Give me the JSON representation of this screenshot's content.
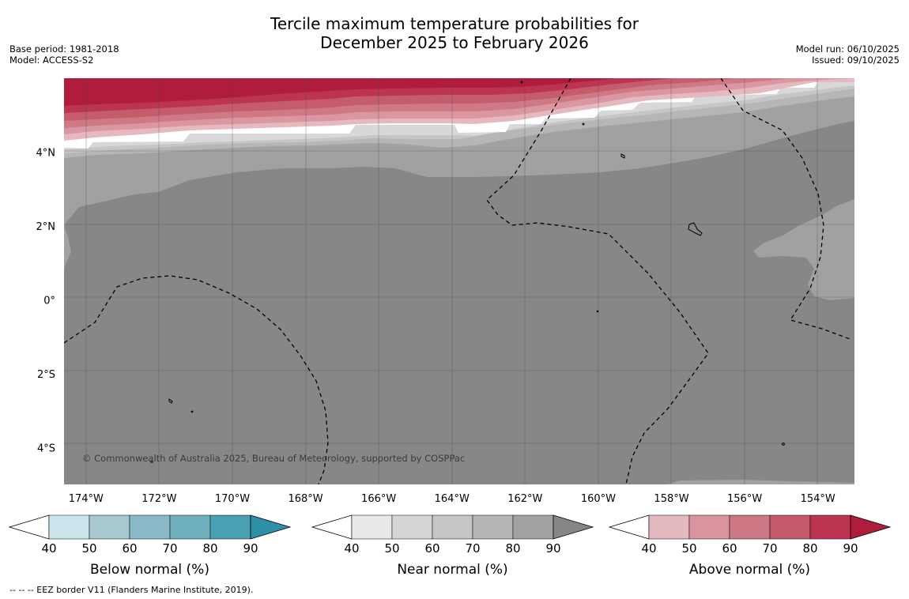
{
  "title": {
    "line1": "Tercile maximum temperature probabilities for",
    "line2": "December 2025 to February 2026"
  },
  "meta_left": {
    "base_period": "Base period: 1981-2018",
    "model": "Model: ACCESS-S2"
  },
  "meta_right": {
    "model_run": "Model run: 06/10/2025",
    "issued": "Issued: 09/10/2025"
  },
  "map": {
    "lon_range": [
      -174.6,
      -153.0
    ],
    "lat_range": [
      -5.0,
      6.0
    ],
    "lon_ticks": [
      {
        "value": -174,
        "label": "174°W"
      },
      {
        "value": -172,
        "label": "172°W"
      },
      {
        "value": -170,
        "label": "170°W"
      },
      {
        "value": -168,
        "label": "168°W"
      },
      {
        "value": -166,
        "label": "166°W"
      },
      {
        "value": -164,
        "label": "164°W"
      },
      {
        "value": -162,
        "label": "162°W"
      },
      {
        "value": -160,
        "label": "160°W"
      },
      {
        "value": -158,
        "label": "158°W"
      },
      {
        "value": -156,
        "label": "156°W"
      },
      {
        "value": -154,
        "label": "154°W"
      }
    ],
    "lat_ticks": [
      {
        "value": 4,
        "label": "4°N"
      },
      {
        "value": 2,
        "label": "2°N"
      },
      {
        "value": 0,
        "label": "0°"
      },
      {
        "value": -2,
        "label": "2°S"
      },
      {
        "value": -4,
        "label": "4°S"
      }
    ],
    "copyright": "© Commonwealth of Australia 2025, Bureau of Meteorology, supported by COSPPac"
  },
  "colorbars": [
    {
      "label": "Below normal (%)",
      "ticks": [
        "40",
        "50",
        "60",
        "70",
        "80",
        "90"
      ],
      "colors": [
        "#cbe3ea",
        "#a8c8cf",
        "#8bb8c6",
        "#6fafbd",
        "#4aa0b2",
        "#2f8fa6"
      ]
    },
    {
      "label": "Near normal (%)",
      "ticks": [
        "40",
        "50",
        "60",
        "70",
        "80",
        "90"
      ],
      "colors": [
        "#e8e8e8",
        "#d6d6d6",
        "#c6c6c6",
        "#b6b6b6",
        "#a2a2a2",
        "#868686"
      ]
    },
    {
      "label": "Above normal (%)",
      "ticks": [
        "40",
        "50",
        "60",
        "70",
        "80",
        "90"
      ],
      "colors": [
        "#e4b8bf",
        "#d9949f",
        "#ce7886",
        "#c45b6b",
        "#bb3450",
        "#b01c3b"
      ]
    }
  ],
  "footer": "--  --  -- EEZ border V11 (Flanders Marine Institute, 2019)."
}
